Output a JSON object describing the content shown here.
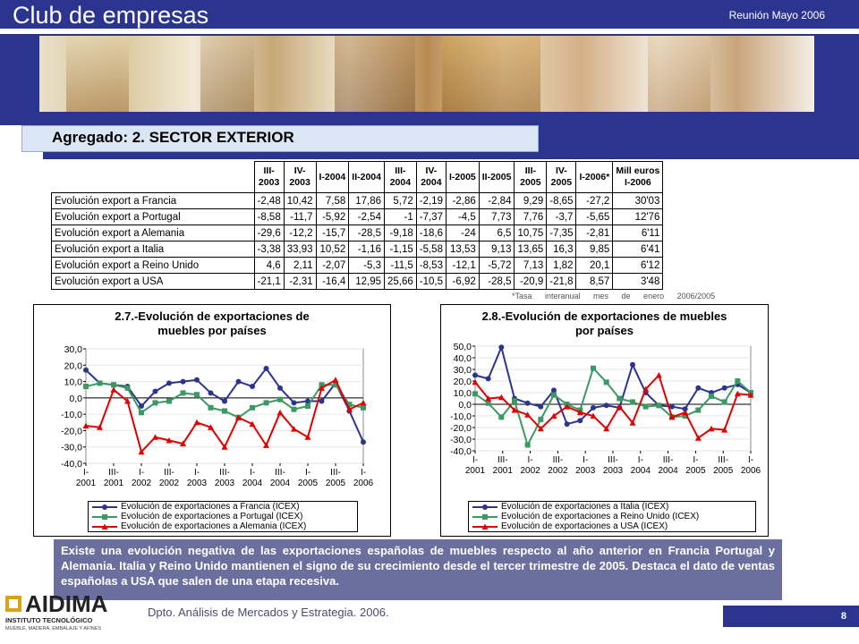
{
  "header": {
    "brand": "Club de empresas",
    "meeting": "Reunión Mayo 2006"
  },
  "section_title": "Agregado: 2. SECTOR EXTERIOR",
  "table": {
    "headers": [
      "III-\n2003",
      "IV-\n2003",
      "I-2004",
      "II-2004",
      "III-\n2004",
      "IV-\n2004",
      "I-2005",
      "II-2005",
      "III-\n2005",
      "IV-\n2005",
      "I-2006*",
      "Mill euros\nI-2006"
    ],
    "rows": [
      {
        "label": "Evolución export a Francia",
        "values": [
          "-2,48",
          "10,42",
          "7,58",
          "17,86",
          "5,72",
          "-2,19",
          "-2,86",
          "-2,84",
          "9,29",
          "-8,65",
          "-27,2",
          "30'03"
        ]
      },
      {
        "label": "Evolución export a Portugal",
        "values": [
          "-8,58",
          "-11,7",
          "-5,92",
          "-2,54",
          "-1",
          "-7,37",
          "-4,5",
          "7,73",
          "7,76",
          "-3,7",
          "-5,65",
          "12'76"
        ]
      },
      {
        "label": "Evolución export a Alemania",
        "values": [
          "-29,6",
          "-12,2",
          "-15,7",
          "-28,5",
          "-9,18",
          "-18,6",
          "-24",
          "6,5",
          "10,75",
          "-7,35",
          "-2,81",
          "6'11"
        ]
      },
      {
        "label": "Evolución export a Italia",
        "values": [
          "-3,38",
          "33,93",
          "10,52",
          "-1,16",
          "-1,15",
          "-5,58",
          "13,53",
          "9,13",
          "13,65",
          "16,3",
          "9,85",
          "6'41"
        ]
      },
      {
        "label": "Evolución export a Reino Unido",
        "values": [
          "4,6",
          "2,11",
          "-2,07",
          "-5,3",
          "-11,5",
          "-8,53",
          "-12,1",
          "-5,72",
          "7,13",
          "1,82",
          "20,1",
          "6'12"
        ]
      },
      {
        "label": "Evolución export a USA",
        "values": [
          "-21,1",
          "-2,31",
          "-16,4",
          "12,95",
          "25,66",
          "-10,5",
          "-6,92",
          "-28,5",
          "-20,9",
          "-21,8",
          "8,57",
          "3'48"
        ]
      }
    ]
  },
  "footnote": "*Tasa interanual mes de enero 2006/2005",
  "chart_data": [
    {
      "type": "line",
      "title": "2.7.-Evolución de exportaciones de muebles por países",
      "ylim": [
        -40,
        30
      ],
      "yticks": [
        "30,0",
        "20,0",
        "10,0",
        "0,0",
        "-10,0",
        "-20,0",
        "-30,0",
        "-40,0"
      ],
      "xtick_labels": [
        [
          "I-",
          "2001"
        ],
        [
          "III-",
          "2001"
        ],
        [
          "I-",
          "2002"
        ],
        [
          "III-",
          "2002"
        ],
        [
          "I-",
          "2003"
        ],
        [
          "III-",
          "2003"
        ],
        [
          "I-",
          "2004"
        ],
        [
          "III-",
          "2004"
        ],
        [
          "I-",
          "2005"
        ],
        [
          "III-",
          "2005"
        ],
        [
          "I-",
          "2006"
        ]
      ],
      "series": [
        {
          "name": "Evolución de exportaciones a Francia  (ICEX)",
          "color": "#2b3590",
          "marker": "circle",
          "values": [
            17,
            9,
            8,
            7,
            -5,
            4,
            9,
            10,
            11,
            3,
            -2,
            10,
            7,
            18,
            6,
            -3,
            -2,
            -2,
            9,
            -8,
            -27
          ]
        },
        {
          "name": "Evolución de exportaciones a Portugal  (ICEX)",
          "color": "#3a9a62",
          "marker": "square",
          "values": [
            7,
            9,
            8,
            6,
            -9,
            -3,
            -2,
            3,
            2,
            -6,
            -8,
            -12,
            -6,
            -3,
            -1,
            -7,
            -5,
            8,
            8,
            -4,
            -6
          ]
        },
        {
          "name": "Evolución de exportaciones a Alemania  (ICEX)",
          "color": "#e00000",
          "marker": "triangle",
          "values": [
            -17,
            -18,
            5,
            -2,
            -33,
            -24,
            -26,
            -28,
            -15,
            -18,
            -30,
            -12,
            -16,
            -29,
            -9,
            -19,
            -24,
            6,
            11,
            -7,
            -3
          ]
        }
      ]
    },
    {
      "type": "line",
      "title": "2.8.-Evolución de exportaciones de muebles por países",
      "ylim": [
        -40,
        50
      ],
      "yticks": [
        "50,0",
        "40,0",
        "30,0",
        "20,0",
        "10,0",
        "0,0",
        "-10,0",
        "-20,0",
        "-30,0",
        "-40,0"
      ],
      "xtick_labels": [
        [
          "I-",
          "2001"
        ],
        [
          "III-",
          "2001"
        ],
        [
          "I-",
          "2002"
        ],
        [
          "III-",
          "2002"
        ],
        [
          "I-",
          "2003"
        ],
        [
          "III-",
          "2003"
        ],
        [
          "I-",
          "2004"
        ],
        [
          "III-",
          "2004"
        ],
        [
          "I-",
          "2005"
        ],
        [
          "III-",
          "2005"
        ],
        [
          "I-",
          "2006"
        ]
      ],
      "series": [
        {
          "name": "Evolución de exportaciones a Italia  (ICEX)",
          "color": "#2b3590",
          "marker": "circle",
          "values": [
            25,
            22,
            49,
            5,
            1,
            -2,
            12,
            -17,
            -14,
            -3,
            -1,
            -3,
            34,
            10,
            -1,
            -2,
            -4,
            14,
            10,
            14,
            17,
            10
          ]
        },
        {
          "name": "Evolución de exportaciones a Reino Unido  (ICEX)",
          "color": "#3a9a62",
          "marker": "square",
          "values": [
            9,
            1,
            -11,
            3,
            -35,
            -13,
            8,
            0,
            -5,
            31,
            19,
            5,
            2,
            -2,
            -1,
            -11,
            -10,
            -5,
            7,
            2,
            20,
            10
          ]
        },
        {
          "name": "Evolución de exportaciones a USA  (ICEX)",
          "color": "#e00000",
          "marker": "triangle",
          "values": [
            19,
            5,
            6,
            -5,
            -9,
            -21,
            -10,
            -2,
            -7,
            -10,
            -21,
            -2,
            -16,
            13,
            25,
            -11,
            -7,
            -29,
            -21,
            -22,
            9,
            8
          ]
        }
      ]
    }
  ],
  "comment": "Existe una evolución negativa de las exportaciones españolas de muebles respecto al año anterior en Francia Portugal y Alemania. Italia y Reino Unido mantienen el signo de su crecimiento desde el tercer trimestre de 2005. Destaca el dato de ventas españolas a USA que salen de una etapa recesiva.",
  "footer": {
    "department": "Dpto. Análisis de Mercados y Estrategia. 2006.",
    "page": "8"
  },
  "logo": {
    "name": "AIDIMA",
    "subtitle": "INSTITUTO TECNOLÓGICO",
    "tagline": "MUEBLE, MADERA, EMBALAJE Y AFINES"
  }
}
